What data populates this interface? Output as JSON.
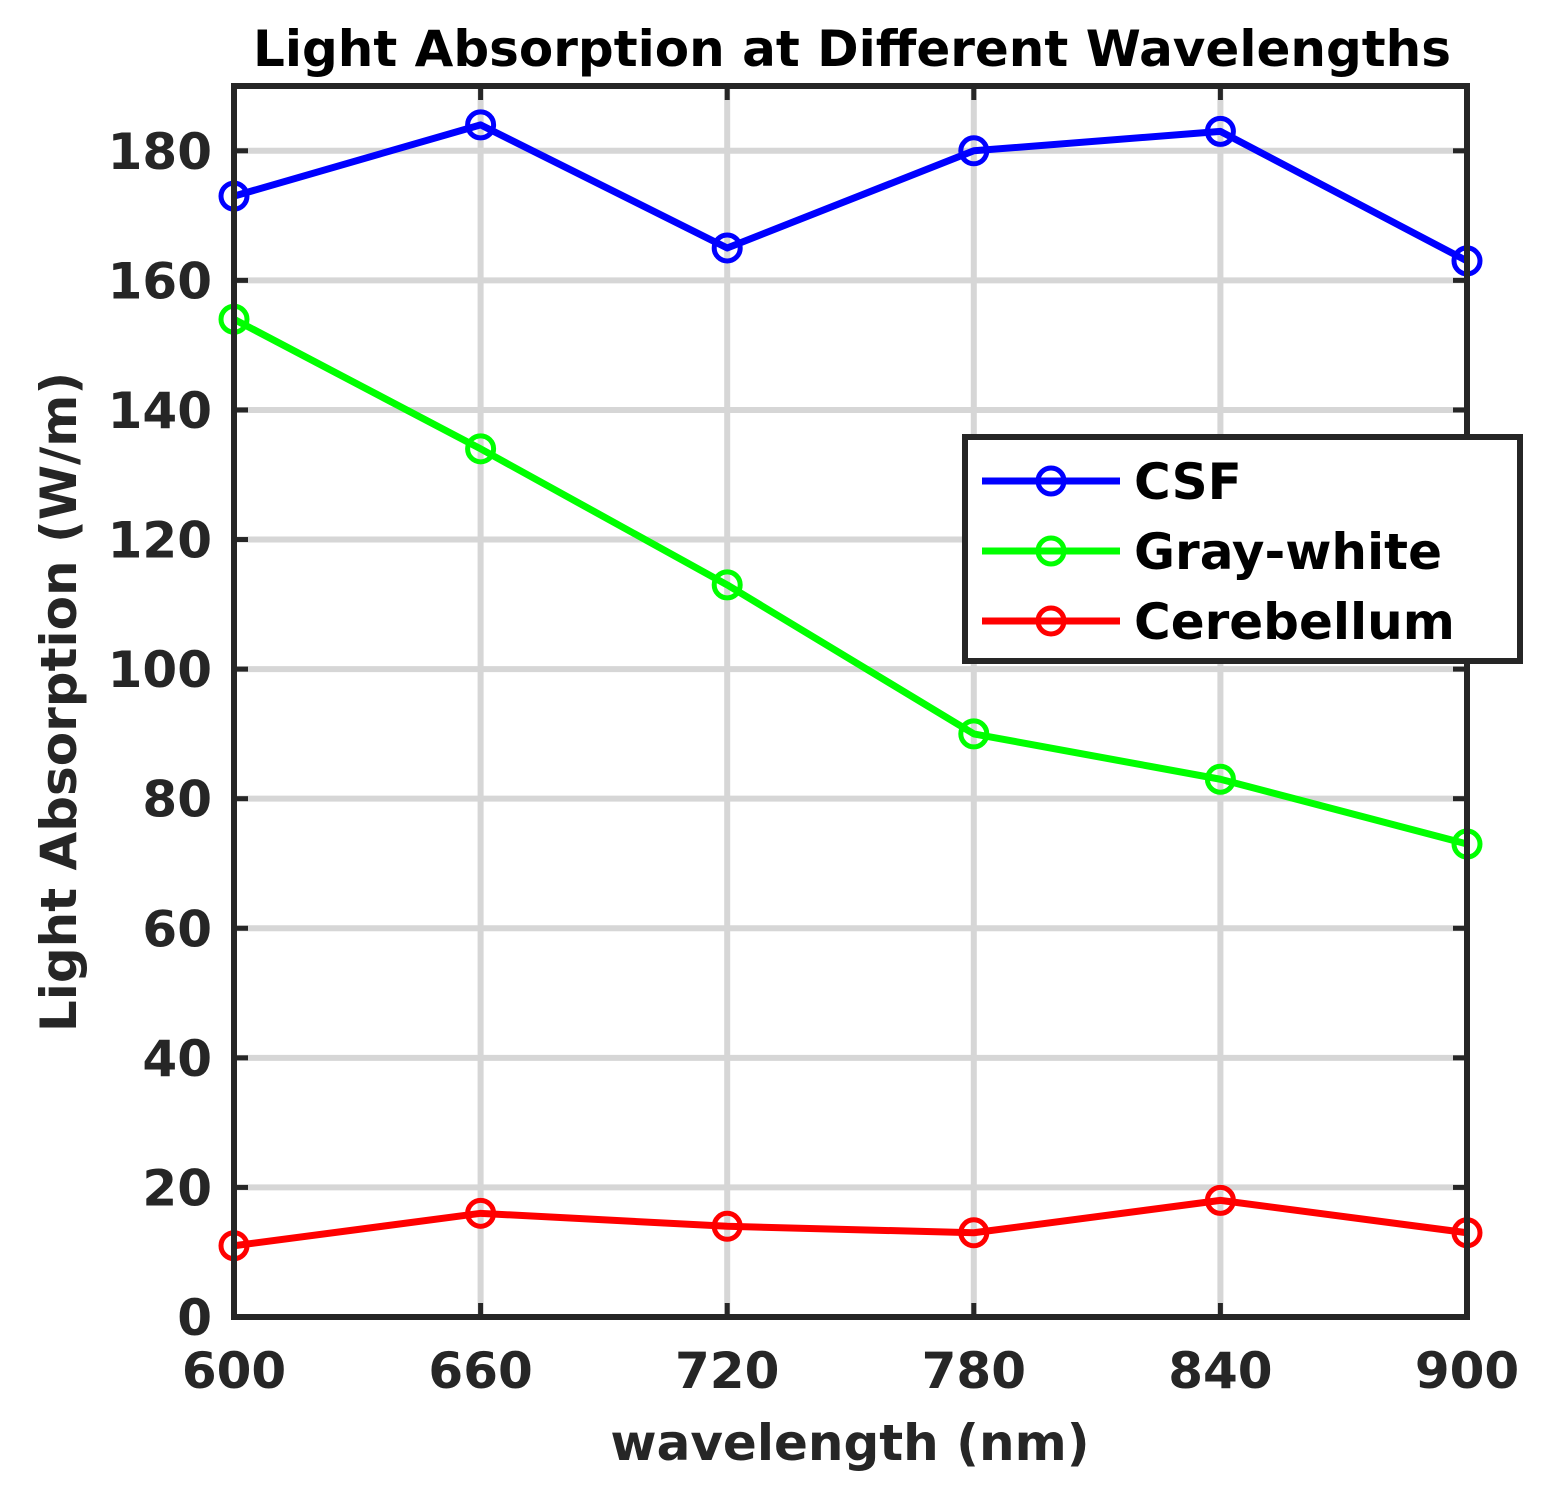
{
  "chart_data": {
    "type": "line",
    "title": "Light Absorption at Different Wavelengths",
    "xlabel": "wavelength (nm)",
    "ylabel": "Light Absorption (W/m)",
    "x": [
      600,
      660,
      720,
      780,
      840,
      900
    ],
    "xlim": [
      600,
      900
    ],
    "ylim": [
      0,
      190
    ],
    "xticks": [
      "600",
      "660",
      "720",
      "780",
      "840",
      "900"
    ],
    "yticks": [
      "0",
      "20",
      "40",
      "60",
      "80",
      "100",
      "120",
      "140",
      "160",
      "180"
    ],
    "grid": true,
    "legend_position": "center-right",
    "series": [
      {
        "name": "CSF",
        "color": "#0000ff",
        "marker": "circle",
        "values": [
          173,
          184,
          165,
          180,
          183,
          163
        ]
      },
      {
        "name": "Gray-white",
        "color": "#00ff00",
        "marker": "circle",
        "values": [
          154,
          134,
          113,
          90,
          83,
          73
        ]
      },
      {
        "name": "Cerebellum",
        "color": "#ff0000",
        "marker": "circle",
        "values": [
          11,
          16,
          14,
          13,
          18,
          13
        ]
      }
    ]
  }
}
